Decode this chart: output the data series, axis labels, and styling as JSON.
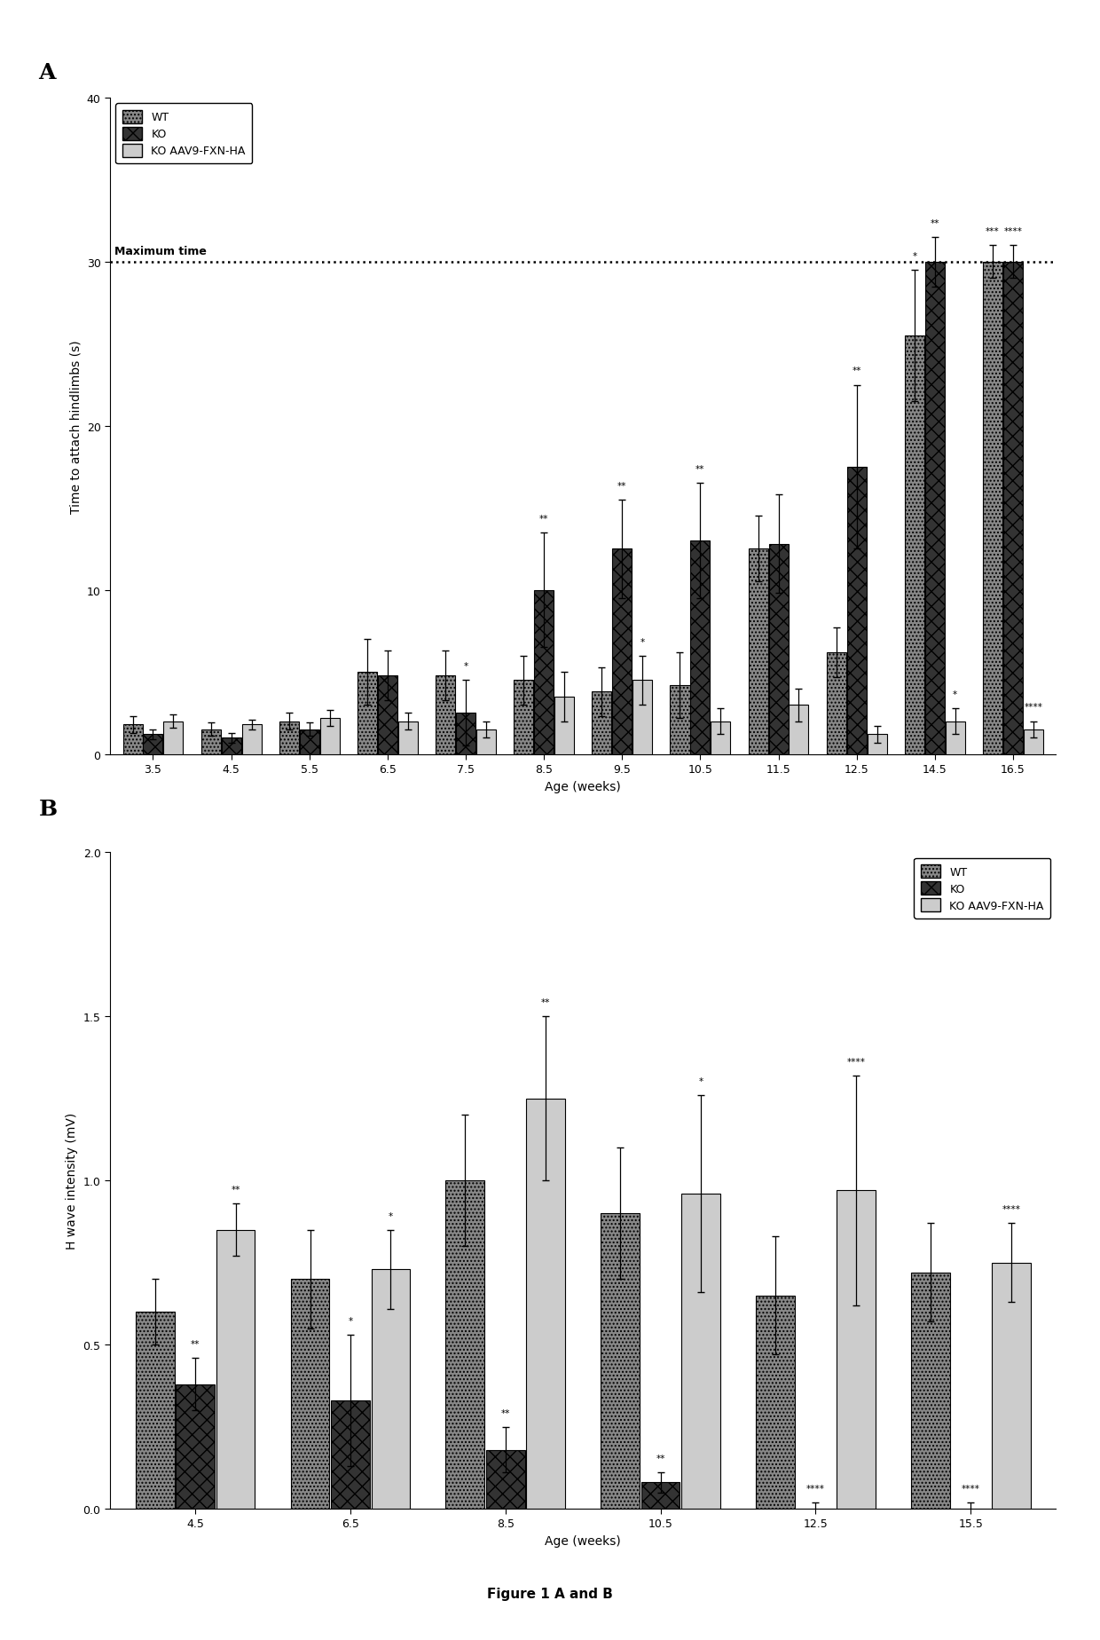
{
  "panel_A": {
    "xlabel": "Age (weeks)",
    "ylabel": "Time to attach hindlimbs (s)",
    "ylim": [
      0,
      40
    ],
    "yticks": [
      0,
      10,
      20,
      30,
      40
    ],
    "dashed_line_y": 30,
    "dashed_line_label": "Maximum time",
    "x_labels": [
      "3.5",
      "4.5",
      "5.5",
      "6.5",
      "7.5",
      "8.5",
      "9.5",
      "10.5",
      "11.5",
      "12.5",
      "14.5",
      "16.5"
    ],
    "wt_values": [
      1.8,
      1.5,
      2.0,
      5.0,
      4.8,
      4.5,
      3.8,
      4.2,
      12.5,
      6.2,
      25.5,
      30.0
    ],
    "ko_values": [
      1.2,
      1.0,
      1.5,
      4.8,
      2.5,
      10.0,
      12.5,
      13.0,
      12.8,
      17.5,
      30.0,
      30.0
    ],
    "aav_values": [
      2.0,
      1.8,
      2.2,
      2.0,
      1.5,
      3.5,
      4.5,
      2.0,
      3.0,
      1.2,
      2.0,
      1.5
    ],
    "wt_errors": [
      0.5,
      0.4,
      0.5,
      2.0,
      1.5,
      1.5,
      1.5,
      2.0,
      2.0,
      1.5,
      4.0,
      1.0
    ],
    "ko_errors": [
      0.3,
      0.3,
      0.4,
      1.5,
      2.0,
      3.5,
      3.0,
      3.5,
      3.0,
      5.0,
      1.5,
      1.0
    ],
    "aav_errors": [
      0.4,
      0.3,
      0.5,
      0.5,
      0.5,
      1.5,
      1.5,
      0.8,
      1.0,
      0.5,
      0.8,
      0.5
    ],
    "wt_sig": [
      "",
      "",
      "",
      "",
      "",
      "",
      "",
      "",
      "",
      "",
      "*",
      "***"
    ],
    "ko_sig": [
      "",
      "",
      "",
      "",
      "*",
      "**",
      "**",
      "**",
      "",
      "**",
      "**",
      "****"
    ],
    "aav_sig": [
      "",
      "",
      "",
      "",
      "",
      "",
      "*",
      "",
      "",
      "",
      "*",
      "****"
    ],
    "legend_labels": [
      "WT",
      "KO",
      "KO AAV9-FXN-HA"
    ]
  },
  "panel_B": {
    "xlabel": "Age (weeks)",
    "ylabel": "H wave intensity (mV)",
    "ylim": [
      0,
      2.0
    ],
    "yticks": [
      0.0,
      0.5,
      1.0,
      1.5,
      2.0
    ],
    "x_labels": [
      "4.5",
      "6.5",
      "8.5",
      "10.5",
      "12.5",
      "15.5"
    ],
    "wt_values": [
      0.6,
      0.7,
      1.0,
      0.9,
      0.65,
      0.72
    ],
    "ko_values": [
      0.38,
      0.33,
      0.18,
      0.08,
      0.0,
      0.0
    ],
    "aav_values": [
      0.85,
      0.73,
      1.25,
      0.96,
      0.97,
      0.75
    ],
    "wt_errors": [
      0.1,
      0.15,
      0.2,
      0.2,
      0.18,
      0.15
    ],
    "ko_errors": [
      0.08,
      0.2,
      0.07,
      0.03,
      0.02,
      0.02
    ],
    "aav_errors": [
      0.08,
      0.12,
      0.25,
      0.3,
      0.35,
      0.12
    ],
    "wt_sig": [
      "",
      "",
      "",
      "",
      "",
      ""
    ],
    "ko_sig": [
      "**",
      "*",
      "**",
      "**",
      "****",
      "****"
    ],
    "aav_sig": [
      "**",
      "*",
      "**",
      "*",
      "****",
      "****"
    ],
    "legend_labels": [
      "WT",
      "KO",
      "KO AAV9-FXN-HA"
    ]
  },
  "figure_label": "Figure 1 A and B"
}
